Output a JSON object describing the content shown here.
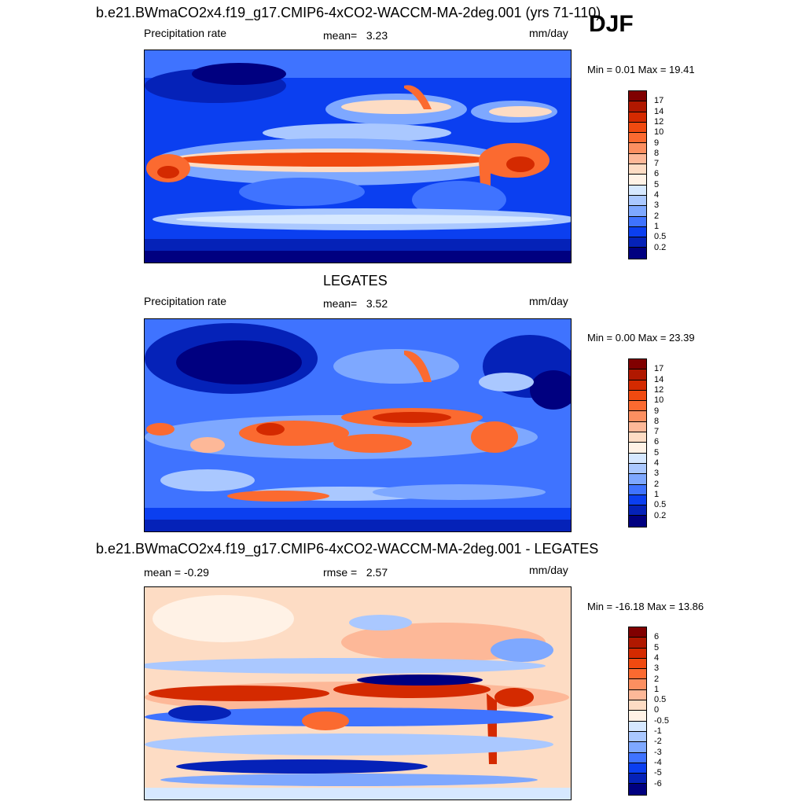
{
  "djf_label": "DJF",
  "chart_data": [
    {
      "type": "heatmap",
      "title": "b.e21.BWmaCO2x4.f19_g17.CMIP6-4xCO2-WACCM-MA-2deg.001 (yrs 71-110)",
      "left_label": "Precipitation rate",
      "stat_label": "mean=",
      "stat_value": "3.23",
      "units": "mm/day",
      "minmax": "Min =   0.01 Max =  19.41",
      "colorbar_levels": [
        "17",
        "14",
        "12",
        "10",
        "9",
        "8",
        "7",
        "6",
        "5",
        "4",
        "3",
        "2",
        "1",
        "0.5",
        "0.2"
      ],
      "colorbar_colors": [
        "#800000",
        "#b01800",
        "#d42a00",
        "#f04a10",
        "#fb6a30",
        "#fc8f60",
        "#fdb898",
        "#fddcc4",
        "#fff2e6",
        "#d6e8ff",
        "#aac8ff",
        "#7ea8ff",
        "#3f73ff",
        "#0b3ff0",
        "#0522b8",
        "#000080"
      ]
    },
    {
      "type": "heatmap",
      "title": "LEGATES",
      "left_label": "Precipitation rate",
      "stat_label": "mean=",
      "stat_value": "3.52",
      "units": "mm/day",
      "minmax": "Min =   0.00 Max =  23.39",
      "colorbar_levels": [
        "17",
        "14",
        "12",
        "10",
        "9",
        "8",
        "7",
        "6",
        "5",
        "4",
        "3",
        "2",
        "1",
        "0.5",
        "0.2"
      ],
      "colorbar_colors": [
        "#800000",
        "#b01800",
        "#d42a00",
        "#f04a10",
        "#fb6a30",
        "#fc8f60",
        "#fdb898",
        "#fddcc4",
        "#fff2e6",
        "#d6e8ff",
        "#aac8ff",
        "#7ea8ff",
        "#3f73ff",
        "#0b3ff0",
        "#0522b8",
        "#000080"
      ]
    },
    {
      "type": "heatmap",
      "title": "b.e21.BWmaCO2x4.f19_g17.CMIP6-4xCO2-WACCM-MA-2deg.001 - LEGATES",
      "left_label": "mean =  -0.29",
      "stat_label": "rmse =",
      "stat_value": "2.57",
      "units": "mm/day",
      "minmax": "Min = -16.18 Max =  13.86",
      "colorbar_levels": [
        "6",
        "5",
        "4",
        "3",
        "2",
        "1",
        "0.5",
        "0",
        "-0.5",
        "-1",
        "-2",
        "-3",
        "-4",
        "-5",
        "-6"
      ],
      "colorbar_colors": [
        "#800000",
        "#b01800",
        "#d42a00",
        "#f04a10",
        "#fb6a30",
        "#fc8f60",
        "#fdb898",
        "#fddcc4",
        "#fff2e6",
        "#d6e8ff",
        "#aac8ff",
        "#7ea8ff",
        "#3f73ff",
        "#0b3ff0",
        "#0522b8",
        "#000080"
      ]
    }
  ]
}
